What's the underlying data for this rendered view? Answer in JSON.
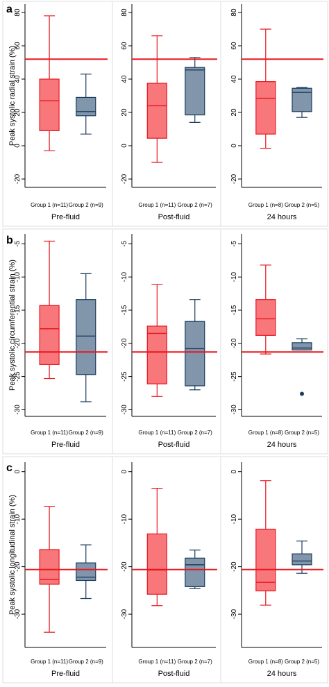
{
  "colors": {
    "reference_line": "#e8171f",
    "group1_fill": "#f7777a",
    "group1_stroke": "#e8171f",
    "group2_fill": "#8196ab",
    "group2_stroke": "#1c3d5e",
    "axis": "#000000",
    "panel_border": "#dddddd"
  },
  "chart_data": [
    {
      "type": "box",
      "panel_letter": "a",
      "ylabel": "Peak systolic radial strain (%)",
      "ylim": [
        -25,
        85
      ],
      "yticks": [
        -20,
        0,
        20,
        40,
        60,
        80
      ],
      "reference_line": 52,
      "subpanels": [
        {
          "title": "Pre-fluid",
          "categories": [
            "Group 1 (n=11)",
            "Group 2 (n=9)"
          ],
          "boxes": [
            {
              "min": -3,
              "q1": 9,
              "median": 27,
              "q3": 40,
              "max": 78
            },
            {
              "min": 7,
              "q1": 18,
              "median": 20.5,
              "q3": 29,
              "max": 43
            }
          ],
          "outliers": [
            [],
            []
          ]
        },
        {
          "title": "Post-fluid",
          "categories": [
            "Group 1 (n=11)",
            "Group 2 (n=7)"
          ],
          "boxes": [
            {
              "min": -10,
              "q1": 4.5,
              "median": 24,
              "q3": 37.5,
              "max": 66
            },
            {
              "min": 14,
              "q1": 18.5,
              "median": 45.5,
              "q3": 47,
              "max": 53
            }
          ],
          "outliers": [
            [],
            []
          ]
        },
        {
          "title": "24 hours",
          "categories": [
            "Group 1 (n=8)",
            "Group 2 (n=5)"
          ],
          "boxes": [
            {
              "min": -1.5,
              "q1": 7,
              "median": 28.5,
              "q3": 38.5,
              "max": 70
            },
            {
              "min": 17,
              "q1": 20.5,
              "median": 32,
              "q3": 34.5,
              "max": 35
            }
          ],
          "outliers": [
            [],
            []
          ]
        }
      ]
    },
    {
      "type": "box",
      "panel_letter": "b",
      "ylabel": "Peak systolic circumferential strain (%)",
      "ylim": [
        -31,
        -3.5
      ],
      "yticks": [
        -5,
        -10,
        -15,
        -20,
        -25,
        -30
      ],
      "reference_line": -21.3,
      "subpanels": [
        {
          "title": "Pre-fluid",
          "categories": [
            "Group 1 (n=11)",
            "Group 2 (n=9)"
          ],
          "boxes": [
            {
              "min": -25.3,
              "q1": -23.2,
              "median": -17.8,
              "q3": -14.3,
              "max": -4.6
            },
            {
              "min": -28.8,
              "q1": -24.7,
              "median": -18.9,
              "q3": -13.4,
              "max": -9.5
            }
          ],
          "outliers": [
            [],
            []
          ]
        },
        {
          "title": "Post-fluid",
          "categories": [
            "Group 1 (n=11)",
            "Group 2 (n=7)"
          ],
          "boxes": [
            {
              "min": -28,
              "q1": -26.1,
              "median": -18.5,
              "q3": -17.4,
              "max": -11.1
            },
            {
              "min": -27,
              "q1": -26.4,
              "median": -20.8,
              "q3": -16.7,
              "max": -13.4
            }
          ],
          "outliers": [
            [],
            []
          ]
        },
        {
          "title": "24 hours",
          "categories": [
            "Group 1 (n=8)",
            "Group 2 (n=5)"
          ],
          "boxes": [
            {
              "min": -21.6,
              "q1": -18.8,
              "median": -16.3,
              "q3": -13.4,
              "max": -8.2
            },
            {
              "min": -21,
              "q1": -21,
              "median": -20.7,
              "q3": -19.9,
              "max": -19.3
            }
          ],
          "outliers": [
            [],
            [
              -27.6
            ]
          ]
        }
      ]
    },
    {
      "type": "box",
      "panel_letter": "c",
      "ylabel": "Peak systolic longitudinal strain (%)",
      "ylim": [
        -37,
        2
      ],
      "yticks": [
        0,
        -10,
        -20,
        -30
      ],
      "reference_line": -20.6,
      "subpanels": [
        {
          "title": "Pre-fluid",
          "categories": [
            "Group 1 (n=11)",
            "Group 2 (n=9)"
          ],
          "boxes": [
            {
              "min": -33.8,
              "q1": -23.7,
              "median": -22.7,
              "q3": -16.4,
              "max": -7.3
            },
            {
              "min": -26.7,
              "q1": -22.9,
              "median": -22.2,
              "q3": -19.2,
              "max": -15.4
            }
          ],
          "outliers": [
            [],
            []
          ]
        },
        {
          "title": "Post-fluid",
          "categories": [
            "Group 1 (n=11)",
            "Group 2 (n=7)"
          ],
          "boxes": [
            {
              "min": -28.2,
              "q1": -25.8,
              "median": -20.7,
              "q3": -13.1,
              "max": -3.5
            },
            {
              "min": -24.6,
              "q1": -24.2,
              "median": -19.6,
              "q3": -18.2,
              "max": -16.5
            }
          ],
          "outliers": [
            [],
            []
          ]
        },
        {
          "title": "24 hours",
          "categories": [
            "Group 1 (n=8)",
            "Group 2 (n=5)"
          ],
          "boxes": [
            {
              "min": -28.1,
              "q1": -25.1,
              "median": -23.3,
              "q3": -12.1,
              "max": -1.9
            },
            {
              "min": -21.4,
              "q1": -19.6,
              "median": -18.8,
              "q3": -17.3,
              "max": -14.6
            }
          ],
          "outliers": [
            [],
            []
          ]
        }
      ]
    }
  ]
}
